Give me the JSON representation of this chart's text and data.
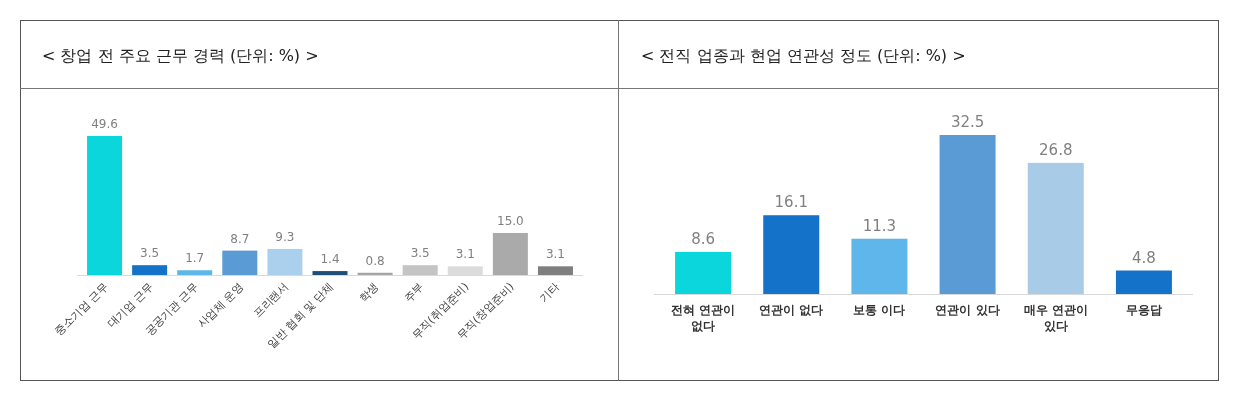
{
  "chart_data": [
    {
      "type": "bar",
      "title": "< 창업 전 주요 근무 경력 (단위: %) >",
      "categories": [
        "중소기업 근무",
        "대기업 근무",
        "공공기관 근무",
        "사업체 운영",
        "프리랜서",
        "일반 협회 및 단체",
        "학생",
        "주부",
        "무직(취업준비)",
        "무직(창업준비)",
        "기타"
      ],
      "values": [
        49.6,
        3.5,
        1.7,
        8.7,
        9.3,
        1.4,
        0.8,
        3.5,
        3.1,
        15.0,
        3.1
      ],
      "colors": [
        "#0bd6dc",
        "#1472c8",
        "#5fb6eb",
        "#5b9bd5",
        "#abd0ee",
        "#1f4e79",
        "#a5a5a5",
        "#c4c4c4",
        "#dcdcdc",
        "#aaaaaa",
        "#7f7f7f"
      ],
      "value_labels": [
        "49.6",
        "3.5",
        "1.7",
        "8.7",
        "9.3",
        "1.4",
        "0.8",
        "3.5",
        "3.1",
        "15.0",
        "3.1"
      ]
    },
    {
      "type": "bar",
      "title": "< 전직 업종과 현업 연관성 정도 (단위: %) >",
      "categories": [
        "전혀 연관이 없다",
        "연관이 없다",
        "보통 이다",
        "연관이 있다",
        "매우 연관이 있다",
        "무응답"
      ],
      "values": [
        8.6,
        16.1,
        11.3,
        32.5,
        26.8,
        4.8
      ],
      "colors": [
        "#0bd6dc",
        "#1472c8",
        "#5fb6eb",
        "#5b9bd5",
        "#a8cbe8",
        "#1472c8"
      ],
      "data_labels": true
    }
  ]
}
